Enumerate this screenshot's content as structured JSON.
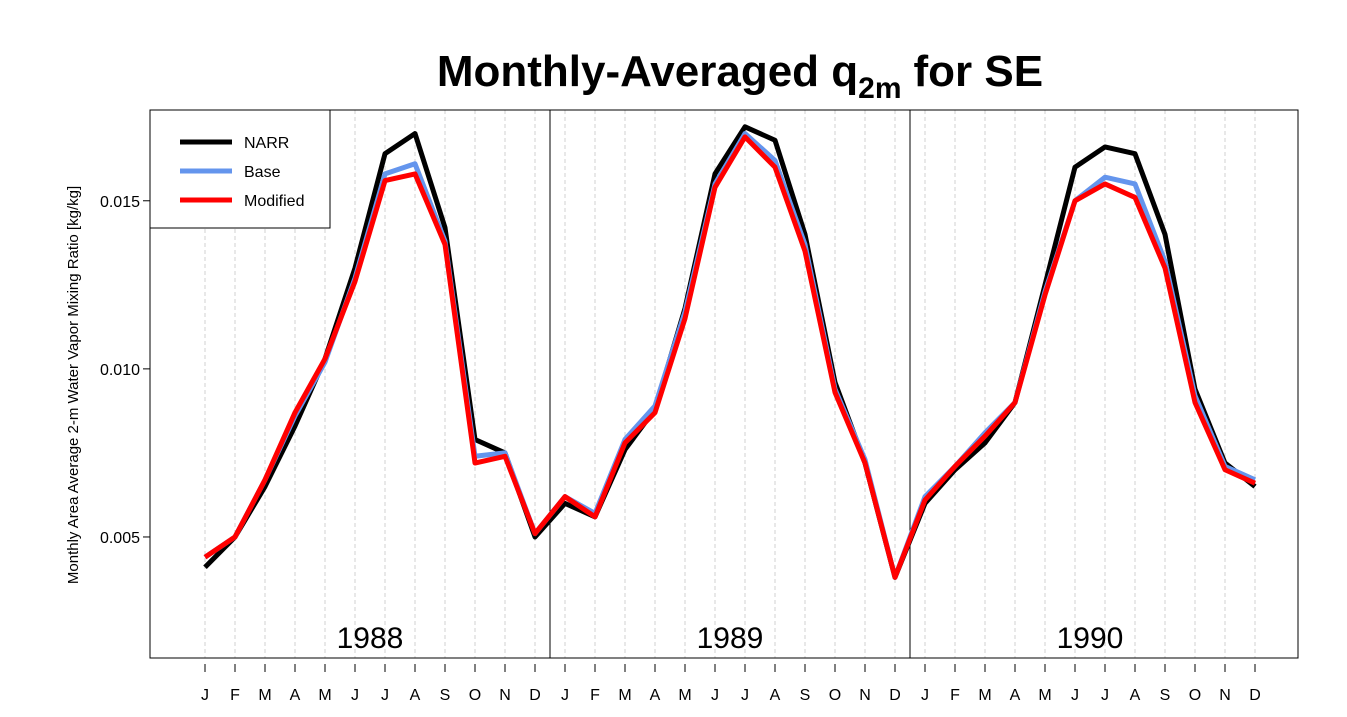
{
  "chart_data": {
    "type": "line",
    "title": "Monthly-Averaged q",
    "title_subscript": "2m",
    "title_suffix": "for SE",
    "y_label": "Monthly Area Average 2-m Water Vapor Mixing Ratio [kg/kg]",
    "categories": [
      "J",
      "F",
      "M",
      "A",
      "M",
      "J",
      "J",
      "A",
      "S",
      "O",
      "N",
      "D",
      "J",
      "F",
      "M",
      "A",
      "M",
      "J",
      "J",
      "A",
      "S",
      "O",
      "N",
      "D",
      "J",
      "F",
      "M",
      "A",
      "M",
      "J",
      "J",
      "A",
      "S",
      "O",
      "N",
      "D"
    ],
    "years": [
      "1988",
      "1989",
      "1990"
    ],
    "series": [
      {
        "name": "NARR",
        "color": "#000000",
        "values": [
          0.0041,
          0.005,
          0.0065,
          0.0083,
          0.0103,
          0.013,
          0.0164,
          0.017,
          0.0142,
          0.0079,
          0.0075,
          0.005,
          0.006,
          0.0056,
          0.0076,
          0.0088,
          0.0118,
          0.0158,
          0.0172,
          0.0168,
          0.014,
          0.0096,
          0.0072,
          0.0038,
          0.006,
          0.007,
          0.0078,
          0.009,
          0.0125,
          0.016,
          0.0166,
          0.0164,
          0.014,
          0.0094,
          0.0072,
          0.0065
        ]
      },
      {
        "name": "Base",
        "color": "#6495ed",
        "values": [
          0.0044,
          0.005,
          0.0067,
          0.0086,
          0.0102,
          0.0127,
          0.0158,
          0.0161,
          0.0138,
          0.0074,
          0.0075,
          0.0051,
          0.0062,
          0.0057,
          0.0079,
          0.0089,
          0.0117,
          0.0155,
          0.017,
          0.0162,
          0.0137,
          0.0094,
          0.0073,
          0.0038,
          0.0062,
          0.0071,
          0.0081,
          0.009,
          0.0123,
          0.015,
          0.0157,
          0.0155,
          0.0132,
          0.0092,
          0.0071,
          0.0067
        ]
      },
      {
        "name": "Modified",
        "color": "#ff0000",
        "values": [
          0.0044,
          0.005,
          0.0067,
          0.0087,
          0.0103,
          0.0126,
          0.0156,
          0.0158,
          0.0137,
          0.0072,
          0.0074,
          0.0051,
          0.0062,
          0.0056,
          0.0078,
          0.0087,
          0.0115,
          0.0154,
          0.0169,
          0.016,
          0.0135,
          0.0093,
          0.0072,
          0.0038,
          0.0061,
          0.0071,
          0.008,
          0.009,
          0.0122,
          0.015,
          0.0155,
          0.0151,
          0.013,
          0.009,
          0.007,
          0.0066
        ]
      }
    ],
    "ylim": [
      0.0014,
      0.0177
    ],
    "yticks": [
      0.005,
      {
        "value": 0.01,
        "label": "0.010"
      },
      0.015
    ],
    "grid": true,
    "legend": "top-left"
  }
}
